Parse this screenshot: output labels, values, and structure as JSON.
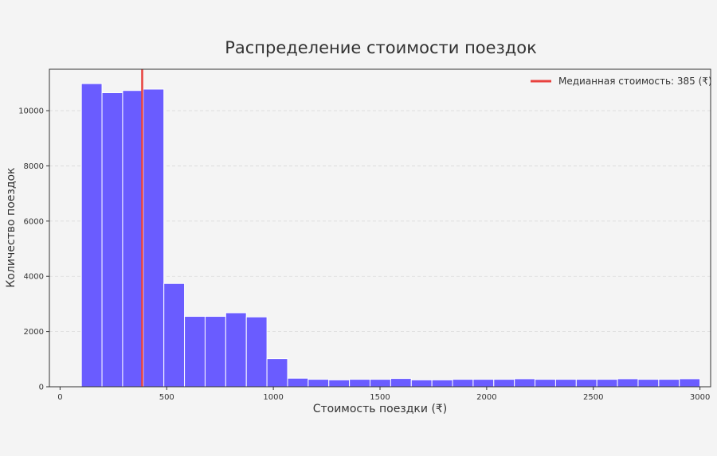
{
  "chart_data": {
    "type": "bar",
    "title": "Распределение стоимости поездок",
    "xlabel": "Стоимость поездки (₹)",
    "ylabel": "Количество поездок",
    "xlim": [
      -50,
      3050
    ],
    "ylim": [
      0,
      11500
    ],
    "xticks": [
      0,
      500,
      1000,
      1500,
      2000,
      2500,
      3000
    ],
    "yticks": [
      0,
      2000,
      4000,
      6000,
      8000,
      10000
    ],
    "grid": true,
    "bar_color": "#6a5cff",
    "bins": [
      {
        "x0": 100,
        "x1": 196.67,
        "value": 10980
      },
      {
        "x0": 196.67,
        "x1": 293.33,
        "value": 10650
      },
      {
        "x0": 293.33,
        "x1": 390,
        "value": 10730
      },
      {
        "x0": 390,
        "x1": 486.67,
        "value": 10780
      },
      {
        "x0": 486.67,
        "x1": 583.33,
        "value": 3740
      },
      {
        "x0": 583.33,
        "x1": 680,
        "value": 2550
      },
      {
        "x0": 680,
        "x1": 776.67,
        "value": 2550
      },
      {
        "x0": 776.67,
        "x1": 873.33,
        "value": 2680
      },
      {
        "x0": 873.33,
        "x1": 970,
        "value": 2530
      },
      {
        "x0": 970,
        "x1": 1066.67,
        "value": 1020
      },
      {
        "x0": 1066.67,
        "x1": 1163.33,
        "value": 310
      },
      {
        "x0": 1163.33,
        "x1": 1260,
        "value": 270
      },
      {
        "x0": 1260,
        "x1": 1356.67,
        "value": 250
      },
      {
        "x0": 1356.67,
        "x1": 1453.33,
        "value": 270
      },
      {
        "x0": 1453.33,
        "x1": 1550,
        "value": 270
      },
      {
        "x0": 1550,
        "x1": 1646.67,
        "value": 300
      },
      {
        "x0": 1646.67,
        "x1": 1743.33,
        "value": 250
      },
      {
        "x0": 1743.33,
        "x1": 1840,
        "value": 250
      },
      {
        "x0": 1840,
        "x1": 1936.67,
        "value": 270
      },
      {
        "x0": 1936.67,
        "x1": 2033.33,
        "value": 270
      },
      {
        "x0": 2033.33,
        "x1": 2130,
        "value": 270
      },
      {
        "x0": 2130,
        "x1": 2226.67,
        "value": 290
      },
      {
        "x0": 2226.67,
        "x1": 2323.33,
        "value": 270
      },
      {
        "x0": 2323.33,
        "x1": 2420,
        "value": 270
      },
      {
        "x0": 2420,
        "x1": 2516.67,
        "value": 270
      },
      {
        "x0": 2516.67,
        "x1": 2613.33,
        "value": 270
      },
      {
        "x0": 2613.33,
        "x1": 2710,
        "value": 290
      },
      {
        "x0": 2710,
        "x1": 2806.67,
        "value": 270
      },
      {
        "x0": 2806.67,
        "x1": 2903.33,
        "value": 270
      },
      {
        "x0": 2903.33,
        "x1": 3000,
        "value": 290
      }
    ],
    "median": {
      "value": 385,
      "label": "Медианная стоимость: 385 (₹)",
      "color": "#e8413e"
    },
    "legend": "top-right"
  }
}
